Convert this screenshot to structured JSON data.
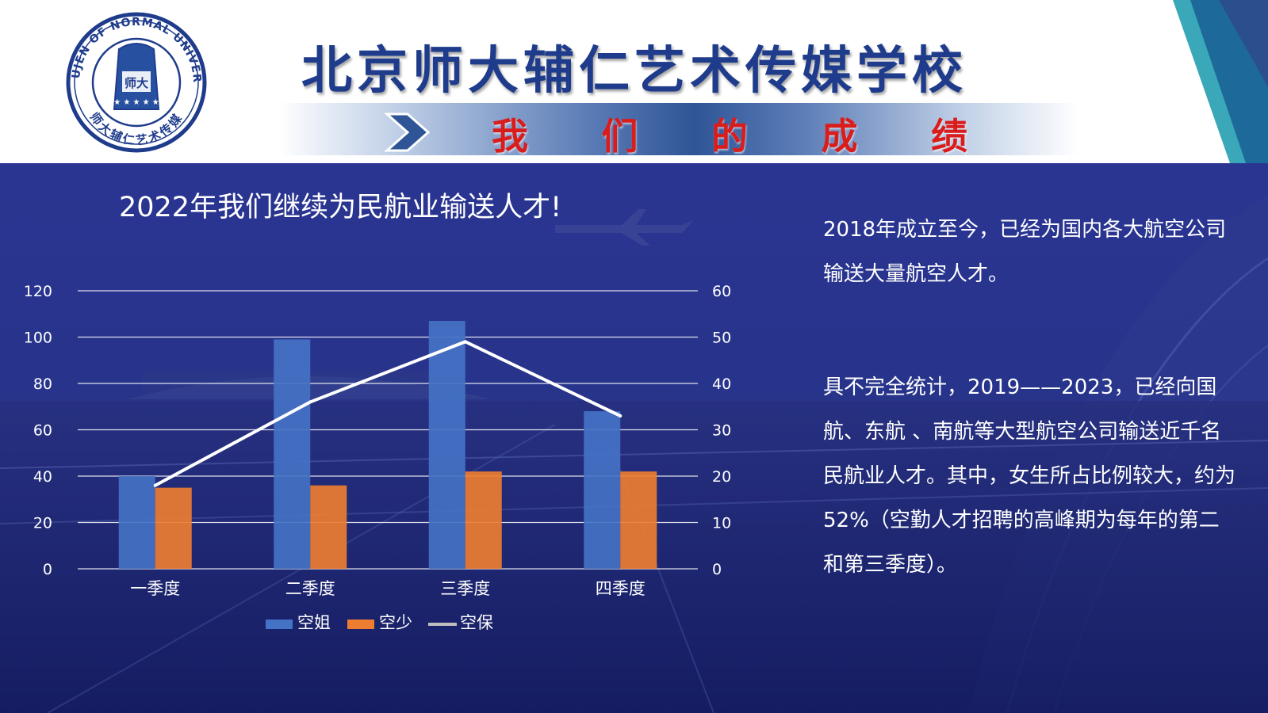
{
  "header": {
    "school_name": "北京师大辅仁艺术传媒学校",
    "section_title": [
      "我",
      "们",
      "的",
      "成",
      "绩"
    ],
    "logo_text": "THEFUJEN OF NORMAL UNIVERSITY",
    "logo_seal_text": "师大辅仁艺术传媒",
    "logo_center": "师大"
  },
  "chart_title": "2022年我们继续为民航业输送人才!",
  "chart_data": {
    "type": "bar",
    "categories": [
      "一季度",
      "二季度",
      "三季度",
      "四季度"
    ],
    "series": [
      {
        "name": "空姐",
        "type": "bar",
        "axis": "left",
        "values": [
          40,
          99,
          107,
          68
        ],
        "color": "#4472c4"
      },
      {
        "name": "空少",
        "type": "bar",
        "axis": "left",
        "values": [
          35,
          36,
          42,
          42
        ],
        "color": "#ed7d31"
      },
      {
        "name": "空保",
        "type": "line",
        "axis": "right",
        "values": [
          18,
          36,
          49,
          33
        ],
        "color": "#ffffff"
      }
    ],
    "ylim": [
      0,
      120
    ],
    "y2lim": [
      0,
      60
    ],
    "yticks": [
      "0",
      "20",
      "40",
      "60",
      "80",
      "100",
      "120"
    ],
    "y2ticks": [
      "0",
      "10",
      "20",
      "30",
      "40",
      "50",
      "60"
    ],
    "grid": true,
    "legend": "bottom"
  },
  "text": {
    "para1": "2018年成立至今，已经为国内各大航空公司输送大量航空人才。",
    "para2": "具不完全统计，2019——2023，已经向国航、东航 、南航等大型航空公司输送近千名民航业人才。其中，女生所占比例较大，约为52%（空勤人才招聘的高峰期为每年的第二和第三季度）。"
  },
  "colors": {
    "title_blue": "#1f3c8c",
    "section_red": "#d91c1c",
    "background_navy": "#1f2a80"
  }
}
